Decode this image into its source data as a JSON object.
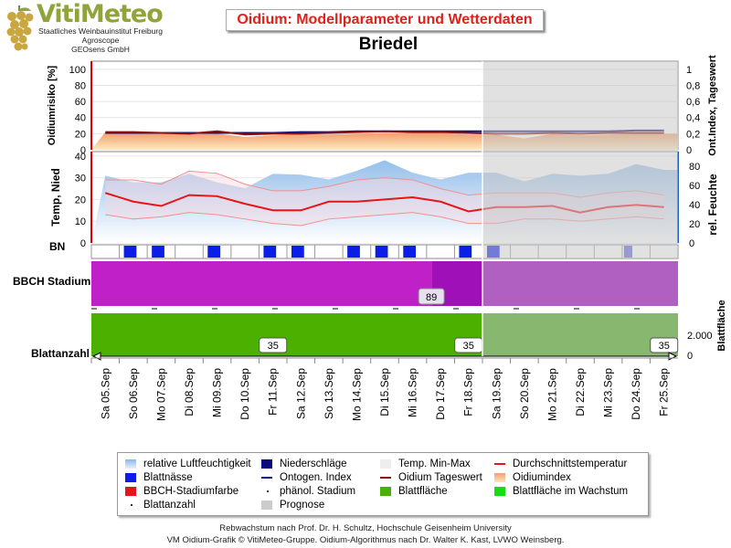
{
  "header": {
    "logo_title": "VitiMeteo",
    "logo_lines": [
      "Staatliches Weinbauinstitut Freiburg",
      "Agroscope",
      "GEOsens GmbH"
    ],
    "chart_title": "Oidium: Modellparameter und Wetterdaten",
    "location": "Briedel"
  },
  "labels": {
    "bn": "BN",
    "bbch": "BBCH Stadium",
    "blattanzahl": "Blattanzahl"
  },
  "legend": [
    {
      "label": "relative Luftfeuchtigkeit",
      "symbol": "gradient-blue"
    },
    {
      "label": "Niederschläge",
      "symbol": "navy-box"
    },
    {
      "label": "Temp. Min-Max",
      "symbol": "light-box"
    },
    {
      "label": "Durchschnittstemperatur",
      "symbol": "red-line"
    },
    {
      "label": "Blattnässe",
      "symbol": "blue-box"
    },
    {
      "label": "Ontogen. Index",
      "symbol": "navy-line"
    },
    {
      "label": "Oidium Tageswert",
      "symbol": "darkred-line"
    },
    {
      "label": "Oidiumindex",
      "symbol": "gradient-orange"
    },
    {
      "label": "BBCH-Stadiumfarbe",
      "symbol": "red-box"
    },
    {
      "label": "phänol. Stadium",
      "symbol": "dot"
    },
    {
      "label": "Blattfläche",
      "symbol": "green-box"
    },
    {
      "label": "Blattfläche im Wachstum",
      "symbol": "bright-green-box"
    },
    {
      "label": "Blattanzahl",
      "symbol": "dot"
    },
    {
      "label": "Prognose",
      "symbol": "gray-box"
    }
  ],
  "footer": [
    "Rebwachstum nach Prof. Dr. H. Schultz, Hochschule Geisenheim University",
    "VM Oidium-Grafik © VitiMeteo-Gruppe. Oidium-Algorithmus nach Dr. Walter K. Kast, LVWO Weinsberg."
  ],
  "colors": {
    "forecast": "#c8c8c8",
    "avg_temp": "#e8141a",
    "humidity": "#8ab8e8",
    "leaf_wetness": "#0a1ee8",
    "bbch_past": "#c020c8",
    "bbch_dark": "#a010b8",
    "leaf_area": "#4cb000",
    "oidium_line": "#8b1010"
  },
  "chart_data": {
    "type": "line",
    "categories": [
      "Sa 05.Sep",
      "So 06.Sep",
      "Mo 07.Sep",
      "Di 08.Sep",
      "Mi 09.Sep",
      "Do 10.Sep",
      "Fr 11.Sep",
      "Sa 12.Sep",
      "So 13.Sep",
      "Mo 14.Sep",
      "Di 15.Sep",
      "Mi 16.Sep",
      "Do 17.Sep",
      "Fr 18.Sep",
      "Sa 19.Sep",
      "So 20.Sep",
      "Mo 21.Sep",
      "Di 22.Sep",
      "Mi 23.Sep",
      "Do 24.Sep",
      "Fr 25.Sep"
    ],
    "forecast_start_index": 14,
    "panel_risk": {
      "ylabel_left": "Oidiumrisiko [%]",
      "ylabel_right": "Ont.Index, Tageswert",
      "yticks_left": [
        0,
        20,
        40,
        60,
        80,
        100
      ],
      "yticks_right": [
        "0",
        "0,2",
        "0,4",
        "0,6",
        "0,8",
        "1"
      ],
      "oidium_index": [
        22,
        22,
        21,
        21,
        20,
        16,
        18,
        19,
        19,
        20,
        21,
        21,
        21,
        19,
        19,
        14,
        20,
        18,
        19,
        20,
        20
      ],
      "oidium_tageswert": [
        0.22,
        0.22,
        0.21,
        0.2,
        0.23,
        0.19,
        0.2,
        0.2,
        0.21,
        0.22,
        0.23,
        0.22,
        0.22,
        0.21,
        0.2,
        0.2,
        0.21,
        0.2,
        0.21,
        0.21,
        0.21
      ],
      "ontogen_index": [
        0.21,
        0.21,
        0.21,
        0.21,
        0.21,
        0.21,
        0.21,
        0.22,
        0.22,
        0.23,
        0.23,
        0.23,
        0.23,
        0.23,
        0.23,
        0.23,
        0.23,
        0.23,
        0.23,
        0.24,
        0.24
      ]
    },
    "panel_weather": {
      "ylabel_left": "Temp, Nied",
      "ylabel_right": "rel. Feuchte",
      "yticks_left": [
        0,
        10,
        20,
        30,
        40
      ],
      "yticks_right": [
        0,
        20,
        40,
        60,
        80
      ],
      "avg_temp": [
        23,
        19,
        17,
        22,
        21.5,
        18,
        15,
        15,
        19,
        19,
        20,
        21,
        19,
        14.5,
        16.5,
        16.5,
        17,
        14,
        16.5,
        17.5,
        16.5
      ],
      "temp_min": [
        13,
        11,
        12,
        14,
        13,
        11,
        9,
        8,
        11,
        12,
        13,
        14,
        12,
        9,
        9,
        11,
        11,
        10,
        11,
        12,
        11
      ],
      "temp_max": [
        29,
        29,
        27,
        33,
        32,
        27,
        24,
        24,
        26,
        29,
        30,
        29,
        25,
        22,
        23,
        23,
        23,
        21,
        23,
        24,
        22
      ],
      "rel_humidity": [
        70,
        63,
        63,
        72,
        63,
        57,
        72,
        71,
        66,
        75,
        86,
        73,
        66,
        73,
        73,
        64,
        72,
        70,
        72,
        82,
        76
      ]
    },
    "leaf_wetness_days": [
      1,
      2,
      4,
      6,
      7,
      9,
      10,
      11,
      13,
      14
    ],
    "forecast_leaf_wetness_days": [
      19
    ],
    "bbch": {
      "value_label": "89",
      "label_day_index": 12,
      "dark_from_index": 12.2
    },
    "leaf_area": {
      "ylabel_right": "Blattfläche",
      "yticks_right": [
        "0",
        "2.000"
      ],
      "blattanzahl_labels": [
        {
          "day_index": 6.5,
          "text": "35"
        },
        {
          "day_index": 13.5,
          "text": "35"
        },
        {
          "day_index": 20.5,
          "text": "35"
        }
      ]
    }
  }
}
